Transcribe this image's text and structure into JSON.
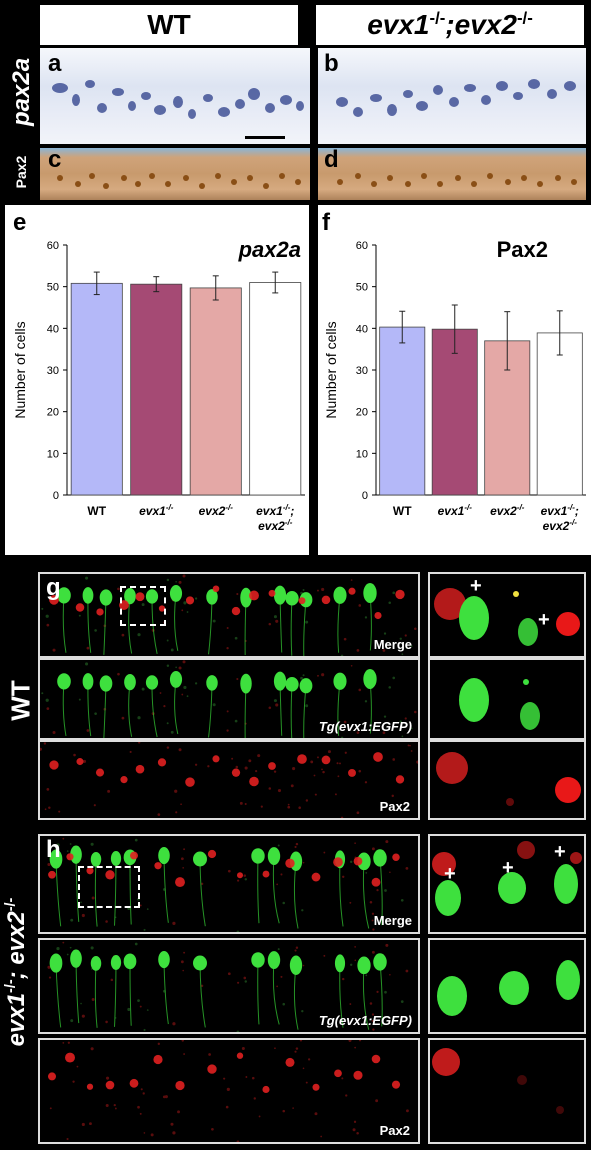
{
  "header": {
    "wt": "WT",
    "mut": "evx1",
    "mut_sup1": "-/-",
    "mut_sep": ";evx2",
    "mut_sup2": "-/-"
  },
  "row_labels": {
    "ish": "pax2a",
    "ihc": "Pax2"
  },
  "panels": {
    "a": "a",
    "b": "b",
    "c": "c",
    "d": "d",
    "e": "e",
    "f": "f",
    "g": "g",
    "h": "h"
  },
  "fluor_labels": {
    "merge": "Merge",
    "tg": "Tg(evx1:EGFP)",
    "pax2": "Pax2"
  },
  "side_labels": {
    "wt": "WT",
    "mut": "evx1",
    "mut_sup1": "-/-",
    "mut_mid": "; evx2",
    "mut_sup2": "-/-"
  },
  "plus_sign": "+",
  "chart_data": [
    {
      "type": "bar",
      "title": "pax2a",
      "ylabel": "Number of cells",
      "ylim": [
        0,
        60
      ],
      "yticks": [
        0,
        10,
        20,
        30,
        40,
        50,
        60
      ],
      "categories": [
        "WT",
        "evx1",
        "evx2",
        "evx1;evx2"
      ],
      "category_labels": [
        [
          "WT"
        ],
        [
          "evx1-/-"
        ],
        [
          "evx2-/-"
        ],
        [
          "evx1-/-;",
          "evx2-/-"
        ]
      ],
      "values": [
        50.8,
        50.6,
        49.7,
        51.0
      ],
      "errors": [
        2.7,
        1.8,
        2.9,
        2.5
      ],
      "colors": [
        "#b4b8f8",
        "#a54a74",
        "#e4a8a6",
        "#ffffff"
      ]
    },
    {
      "type": "bar",
      "title": "Pax2",
      "ylabel": "Number of cells",
      "ylim": [
        0,
        60
      ],
      "yticks": [
        0,
        10,
        20,
        30,
        40,
        50,
        60
      ],
      "categories": [
        "WT",
        "evx1",
        "evx2",
        "evx1;evx2"
      ],
      "category_labels": [
        [
          "WT"
        ],
        [
          "evx1-/-"
        ],
        [
          "evx2-/-"
        ],
        [
          "evx1-/-;",
          "evx2-/-"
        ]
      ],
      "values": [
        40.3,
        39.8,
        37.0,
        38.9
      ],
      "errors": [
        3.8,
        5.8,
        7.0,
        5.3
      ],
      "colors": [
        "#b4b8f8",
        "#a54a74",
        "#e4a8a6",
        "#ffffff"
      ]
    }
  ]
}
